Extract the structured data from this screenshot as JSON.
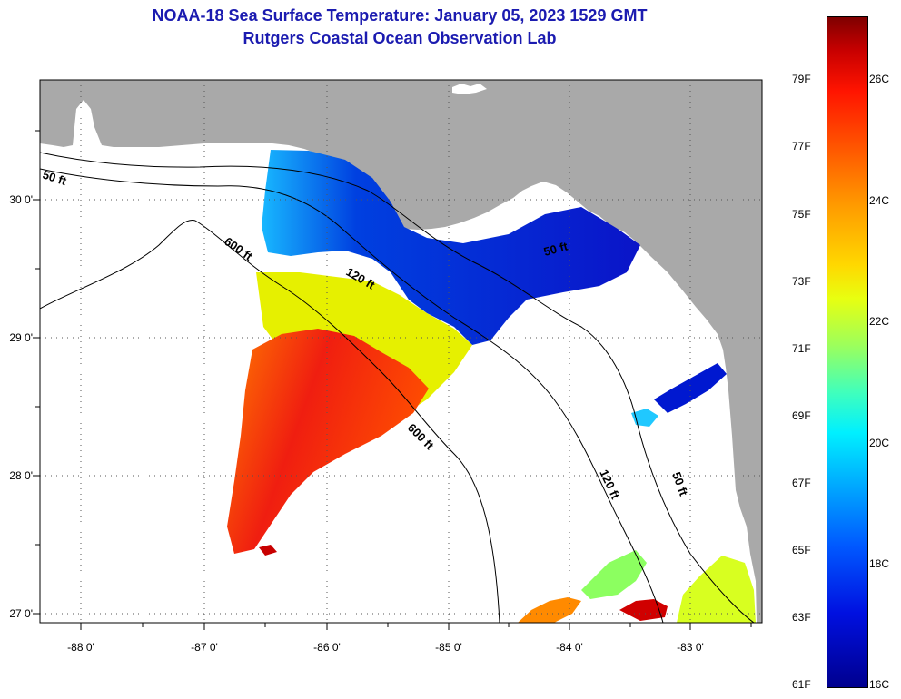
{
  "title": {
    "line1": "NOAA-18 Sea Surface Temperature:  January 05, 2023 1529 GMT",
    "line2": "Rutgers Coastal Ocean Observation Lab"
  },
  "axes": {
    "lat_labels": [
      "30 0'",
      "29 0'",
      "28 0'",
      "27 0'"
    ],
    "lon_labels": [
      "-88 0'",
      "-87 0'",
      "-86 0'",
      "-85 0'",
      "-84 0'",
      "-83 0'"
    ]
  },
  "contours": [
    "50 ft",
    "600 ft",
    "120 ft",
    "50 ft",
    "600 ft",
    "120 ft",
    "50 ft"
  ],
  "colorbar": {
    "fahrenheit": [
      "79F",
      "77F",
      "75F",
      "73F",
      "71F",
      "69F",
      "67F",
      "65F",
      "63F",
      "61F"
    ],
    "celsius": [
      "26C",
      "24C",
      "22C",
      "20C",
      "18C",
      "16C"
    ]
  },
  "colors": {
    "land": "#a9a9a9",
    "title": "#1b1bb0",
    "cold": "#0010c8",
    "warm": "#ff3c00"
  }
}
